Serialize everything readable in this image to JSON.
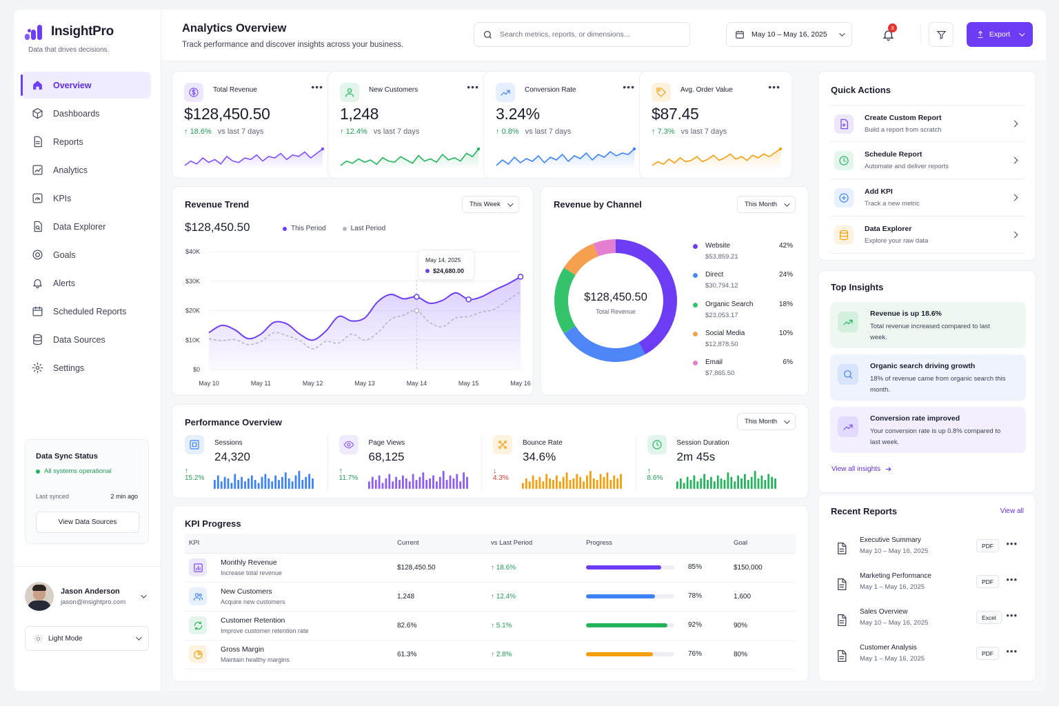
{
  "brand": {
    "name": "InsightPro",
    "tagline": "Data that drives decisions."
  },
  "nav": [
    {
      "label": "Overview",
      "icon": "home-icon"
    },
    {
      "label": "Dashboards",
      "icon": "cube-icon"
    },
    {
      "label": "Reports",
      "icon": "document-icon"
    },
    {
      "label": "Analytics",
      "icon": "chart-icon"
    },
    {
      "label": "KPIs",
      "icon": "gauge-icon"
    },
    {
      "label": "Data Explorer",
      "icon": "file-search-icon"
    },
    {
      "label": "Goals",
      "icon": "target-icon"
    },
    {
      "label": "Alerts",
      "icon": "bell-icon"
    },
    {
      "label": "Scheduled Reports",
      "icon": "calendar-icon"
    },
    {
      "label": "Data Sources",
      "icon": "database-icon"
    },
    {
      "label": "Settings",
      "icon": "gear-icon"
    }
  ],
  "sync": {
    "title": "Data Sync Status",
    "status": "All systems operational",
    "last_label": "Last synced",
    "last_value": "2 min ago",
    "button": "View Data Sources"
  },
  "user": {
    "name": "Jason Anderson",
    "email": "jason@insightpro.com"
  },
  "mode": {
    "label": "Light Mode"
  },
  "header": {
    "title": "Analytics Overview",
    "subtitle": "Track performance and discover insights across your business.",
    "search_placeholder": "Search metrics, reports, or dimensions...",
    "date_range": "May 10 – May 16, 2025",
    "notifications": "3",
    "export_label": "Export"
  },
  "kpis": [
    {
      "label": "Total Revenue",
      "value": "$128,450.50",
      "delta": "18.6%",
      "compare": "vs last 7 days",
      "color": "#7c4dff",
      "icon": "dollar-icon"
    },
    {
      "label": "New Customers",
      "value": "1,248",
      "delta": "12.4%",
      "compare": "vs last 7 days",
      "color": "#22b35b",
      "icon": "user-icon"
    },
    {
      "label": "Conversion Rate",
      "value": "3.24%",
      "delta": "0.8%",
      "compare": "vs last 7 days",
      "color": "#3b82f6",
      "icon": "trend-icon"
    },
    {
      "label": "Avg. Order Value",
      "value": "$87.45",
      "delta": "7.3%",
      "compare": "vs last 7 days",
      "color": "#f59e0b",
      "icon": "tag-icon"
    }
  ],
  "trend": {
    "title": "Revenue Trend",
    "period_filter": "This Week",
    "total": "$128,450.50",
    "legend_this": "This Period",
    "legend_last": "Last Period",
    "tooltip_date": "May 14, 2025",
    "tooltip_value": "$24,680.00"
  },
  "channel": {
    "title": "Revenue by Channel",
    "period_filter": "This Month",
    "center_value": "$128,450.50",
    "center_label": "Total Revenue"
  },
  "performance": {
    "title": "Performance Overview",
    "period_filter": "This Month",
    "items": [
      {
        "label": "Sessions",
        "value": "24,320",
        "delta": "15.2%",
        "direction": "up",
        "color": "#3b82f6",
        "icon": "window-icon"
      },
      {
        "label": "Page Views",
        "value": "68,125",
        "delta": "11.7%",
        "direction": "up",
        "color": "#8b5cf6",
        "icon": "eye-icon"
      },
      {
        "label": "Bounce Rate",
        "value": "34.6%",
        "delta": "4.3%",
        "direction": "down",
        "color": "#f59e0b",
        "icon": "bounce-icon"
      },
      {
        "label": "Session Duration",
        "value": "2m 45s",
        "delta": "8.6%",
        "direction": "up",
        "color": "#22b35b",
        "icon": "clock-icon"
      }
    ]
  },
  "kpi_progress": {
    "title": "KPI Progress",
    "columns": [
      "KPI",
      "Current",
      "vs Last Period",
      "Progress",
      "Goal"
    ],
    "rows": [
      {
        "name": "Monthly Revenue",
        "desc": "Increase total revenue",
        "current": "$128,450.50",
        "delta": "18.6%",
        "progress": 85,
        "progress_label": "85%",
        "goal": "$150,000",
        "color": "#6d3df5",
        "icon": "bar-chart-icon"
      },
      {
        "name": "New Customers",
        "desc": "Acquire new customers",
        "current": "1,248",
        "delta": "12.4%",
        "progress": 78,
        "progress_label": "78%",
        "goal": "1,600",
        "color": "#3b82f6",
        "icon": "users-icon"
      },
      {
        "name": "Customer Retention",
        "desc": "Improve customer retention rate",
        "current": "82.6%",
        "delta": "5.1%",
        "progress": 92,
        "progress_label": "92%",
        "goal": "90%",
        "color": "#22b35b",
        "icon": "refresh-icon"
      },
      {
        "name": "Gross Margin",
        "desc": "Maintain healthy margins",
        "current": "61.3%",
        "delta": "2.8%",
        "progress": 76,
        "progress_label": "76%",
        "goal": "80%",
        "color": "#f59e0b",
        "icon": "pie-icon"
      }
    ]
  },
  "quick_actions": {
    "title": "Quick Actions",
    "items": [
      {
        "title": "Create Custom Report",
        "subtitle": "Build a report from scratch",
        "color": "#6d3df5",
        "icon": "file-plus-icon"
      },
      {
        "title": "Schedule Report",
        "subtitle": "Automate and deliver reports",
        "color": "#22b35b",
        "icon": "clock-icon"
      },
      {
        "title": "Add KPI",
        "subtitle": "Track a new metric",
        "color": "#3b82f6",
        "icon": "plus-circle-icon"
      },
      {
        "title": "Data Explorer",
        "subtitle": "Explore your raw data",
        "color": "#f59e0b",
        "icon": "database-icon"
      }
    ]
  },
  "insights": {
    "title": "Top Insights",
    "link": "View all insights",
    "items": [
      {
        "title": "Revenue is up 18.6%",
        "text": "Total revenue increased compared to last week.",
        "bg": "#eef8f1",
        "color": "#22b35b",
        "icon": "trend-up-icon"
      },
      {
        "title": "Organic search driving growth",
        "text": "18% of revenue came from organic search this month.",
        "bg": "#eef3fc",
        "color": "#3b82f6",
        "icon": "search-icon"
      },
      {
        "title": "Conversion rate improved",
        "text": "Your conversion rate is up 0.8% compared to last week.",
        "bg": "#f3efff",
        "color": "#7c4dff",
        "icon": "trend-up-icon"
      }
    ]
  },
  "recent_reports": {
    "title": "Recent Reports",
    "link": "View all",
    "items": [
      {
        "title": "Executive Summary",
        "date": "May 10 – May 16, 2025",
        "format": "PDF"
      },
      {
        "title": "Marketing Performance",
        "date": "May 1 – May 16, 2025",
        "format": "PDF"
      },
      {
        "title": "Sales Overview",
        "date": "May 10 – May 16, 2025",
        "format": "Excel"
      },
      {
        "title": "Customer Analysis",
        "date": "May 1 – May 16, 2025",
        "format": "PDF"
      }
    ]
  },
  "chart_data": [
    {
      "type": "line",
      "title": "Revenue Trend",
      "categories": [
        "May 10",
        "May 11",
        "May 12",
        "May 13",
        "May 14",
        "May 15",
        "May 16"
      ],
      "y_ticks": [
        "$0",
        "$10K",
        "$20K",
        "$30K",
        "$40K"
      ],
      "ylim": [
        0,
        40000
      ],
      "x": [
        0,
        0.25,
        0.5,
        0.75,
        1,
        1.25,
        1.5,
        1.75,
        2,
        2.25,
        2.5,
        2.75,
        3,
        3.25,
        3.5,
        3.75,
        4,
        4.25,
        4.5,
        4.75,
        5,
        5.25,
        5.5,
        5.75,
        6
      ],
      "series": [
        {
          "name": "This Period",
          "color": "#6d3df5",
          "values": [
            12500,
            15000,
            13500,
            10500,
            12000,
            16000,
            15500,
            12000,
            10000,
            13000,
            18000,
            16500,
            17500,
            23000,
            25500,
            24000,
            24680,
            22500,
            23500,
            26000,
            23800,
            24700,
            27000,
            29000,
            31500
          ]
        },
        {
          "name": "Last Period",
          "color": "#b3b6c4",
          "values": [
            10500,
            9800,
            10200,
            8500,
            9500,
            12500,
            11500,
            9800,
            7000,
            9500,
            9000,
            12000,
            10000,
            12500,
            17000,
            18500,
            20000,
            16000,
            14500,
            17500,
            18000,
            19500,
            20500,
            23500,
            26500
          ]
        }
      ]
    },
    {
      "type": "pie",
      "title": "Revenue by Channel",
      "categories": [
        "Website",
        "Direct",
        "Organic Search",
        "Social Media",
        "Email"
      ],
      "values": [
        42,
        24,
        18,
        10,
        6
      ],
      "amounts": [
        "$53,859.21",
        "$30,794.12",
        "$23,053.17",
        "$12,878.50",
        "$7,865.50"
      ],
      "pct_labels": [
        "42%",
        "24%",
        "18%",
        "10%",
        "6%"
      ],
      "colors": [
        "#6d3df5",
        "#4f86f7",
        "#34c26b",
        "#f5a04e",
        "#e47fcf"
      ]
    },
    {
      "type": "bar",
      "title": "Performance sparkbars",
      "series": [
        {
          "name": "Sessions",
          "color": "#3b82f6",
          "values": [
            6,
            9,
            5,
            8,
            7,
            4,
            10,
            6,
            8,
            5,
            7,
            9,
            6,
            4,
            8,
            10,
            7,
            5,
            9,
            6,
            8,
            11,
            7,
            5,
            9,
            12,
            6,
            8,
            10,
            7
          ]
        },
        {
          "name": "Page Views",
          "color": "#8b5cf6",
          "values": [
            5,
            8,
            6,
            9,
            4,
            7,
            10,
            5,
            8,
            6,
            9,
            7,
            5,
            10,
            6,
            8,
            11,
            6,
            7,
            9,
            5,
            8,
            12,
            6,
            9,
            7,
            10,
            5,
            11,
            8
          ]
        },
        {
          "name": "Bounce Rate",
          "color": "#f59e0b",
          "values": [
            4,
            7,
            5,
            9,
            6,
            8,
            5,
            10,
            7,
            6,
            9,
            5,
            8,
            11,
            6,
            7,
            10,
            8,
            5,
            9,
            12,
            7,
            6,
            10,
            8,
            11,
            6,
            9,
            7,
            10
          ]
        },
        {
          "name": "Session Duration",
          "color": "#22b35b",
          "values": [
            5,
            7,
            4,
            8,
            6,
            9,
            5,
            7,
            10,
            6,
            8,
            5,
            9,
            7,
            6,
            11,
            8,
            5,
            9,
            7,
            10,
            6,
            8,
            12,
            7,
            9,
            6,
            10,
            8,
            7
          ]
        }
      ]
    },
    {
      "type": "line",
      "title": "KPI sparklines",
      "series": [
        {
          "name": "Total Revenue",
          "color": "#7c4dff",
          "values": [
            11,
            14,
            12,
            16,
            13,
            15,
            12,
            17,
            14,
            13,
            16,
            15,
            18,
            14,
            17,
            16,
            19,
            15,
            18,
            17,
            20,
            16,
            19,
            22
          ]
        },
        {
          "name": "New Customers",
          "color": "#22b35b",
          "values": [
            9,
            13,
            11,
            15,
            12,
            14,
            10,
            16,
            13,
            12,
            17,
            14,
            11,
            18,
            13,
            15,
            12,
            19,
            14,
            16,
            13,
            20,
            17,
            24
          ]
        },
        {
          "name": "Conversion Rate",
          "color": "#3b82f6",
          "values": [
            10,
            14,
            11,
            16,
            12,
            15,
            13,
            17,
            12,
            16,
            14,
            18,
            13,
            17,
            15,
            19,
            14,
            18,
            16,
            20,
            17,
            19,
            18,
            22
          ]
        },
        {
          "name": "Avg. Order Value",
          "color": "#f59e0b",
          "values": [
            10,
            13,
            11,
            15,
            12,
            16,
            13,
            14,
            17,
            13,
            15,
            18,
            14,
            16,
            19,
            15,
            17,
            14,
            18,
            16,
            19,
            17,
            20,
            23
          ]
        }
      ]
    }
  ]
}
